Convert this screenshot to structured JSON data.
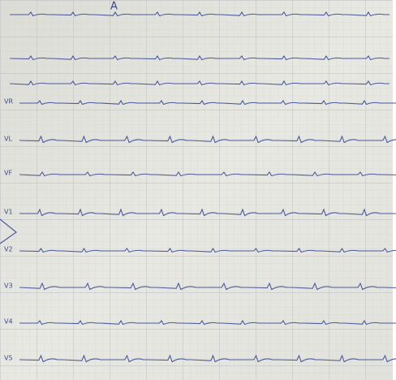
{
  "annotation": "A",
  "leads": [
    {
      "label": "VR"
    },
    {
      "label": "VL"
    },
    {
      "label": "VF"
    },
    {
      "label": "V1"
    },
    {
      "label": "V2"
    },
    {
      "label": "V3"
    },
    {
      "label": "V4"
    },
    {
      "label": "V5"
    }
  ]
}
